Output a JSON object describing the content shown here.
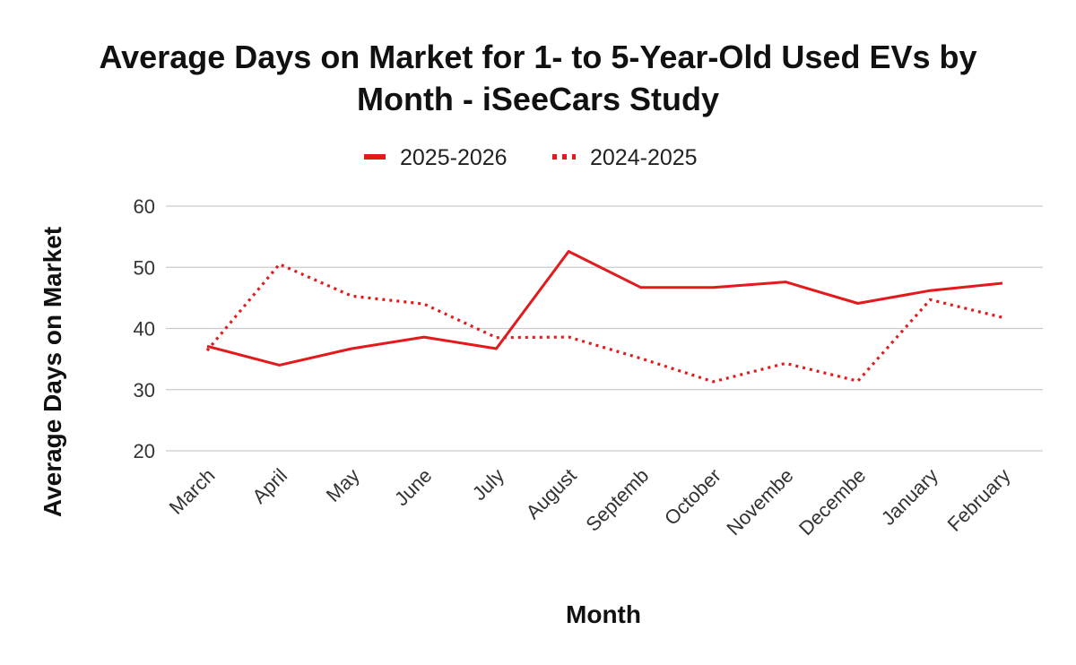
{
  "chart_data": {
    "type": "line",
    "title": "Average Days on Market for 1- to 5-Year-Old Used EVs by Month - iSeeCars Study",
    "title_lines": [
      "Average Days on Market for 1- to 5-Year-Old Used EVs by",
      "Month - iSeeCars Study"
    ],
    "xlabel": "Month",
    "ylabel": "Average Days on Market",
    "categories": [
      "March",
      "April",
      "May",
      "June",
      "July",
      "August",
      "Septemb",
      "October",
      "Novembe",
      "Decembe",
      "January",
      "February"
    ],
    "yticks": [
      20,
      30,
      40,
      50,
      60
    ],
    "ylim": [
      20,
      60
    ],
    "grid": true,
    "legend_position": "top-center",
    "series": [
      {
        "name": "2025-2026",
        "style": "solid",
        "color": "#e3191c",
        "values": [
          37.1,
          34.0,
          36.7,
          38.6,
          36.7,
          52.6,
          46.7,
          46.7,
          47.6,
          44.1,
          46.2,
          47.4
        ]
      },
      {
        "name": "2024-2025",
        "style": "dotted",
        "color": "#e3191c",
        "values": [
          36.4,
          50.5,
          45.3,
          44.0,
          38.5,
          38.6,
          35.1,
          31.3,
          34.3,
          31.4,
          44.7,
          41.8
        ]
      }
    ]
  }
}
